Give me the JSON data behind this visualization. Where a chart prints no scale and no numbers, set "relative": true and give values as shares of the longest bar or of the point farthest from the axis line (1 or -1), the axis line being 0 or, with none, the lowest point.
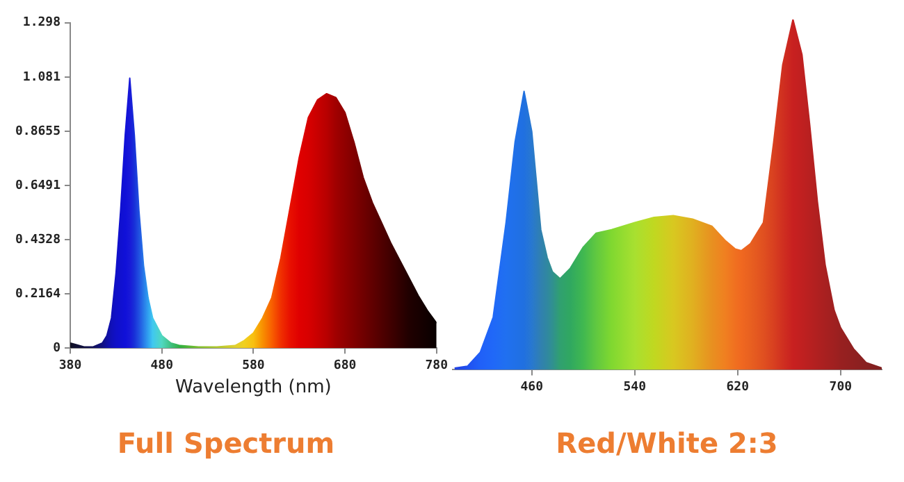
{
  "chart_data": [
    {
      "type": "area",
      "title": "Full Spectrum",
      "xlabel": "Wavelength (nm)",
      "xlim": [
        380,
        780
      ],
      "xticks": [
        380,
        480,
        580,
        680,
        780
      ],
      "ylim": [
        0,
        1.298
      ],
      "yticks": [
        0,
        0.2164,
        0.4328,
        0.6491,
        0.8655,
        1.081,
        1.298
      ],
      "x": [
        380,
        385,
        395,
        405,
        415,
        420,
        425,
        430,
        435,
        440,
        445,
        450,
        455,
        460,
        465,
        470,
        480,
        490,
        500,
        520,
        540,
        560,
        570,
        580,
        590,
        600,
        610,
        620,
        630,
        640,
        650,
        660,
        670,
        680,
        690,
        700,
        710,
        720,
        730,
        740,
        750,
        760,
        770,
        780
      ],
      "series": [
        {
          "values": [
            0.02,
            0.015,
            0.005,
            0.005,
            0.02,
            0.05,
            0.12,
            0.3,
            0.55,
            0.85,
            1.077,
            0.85,
            0.55,
            0.33,
            0.2,
            0.12,
            0.05,
            0.02,
            0.01,
            0.005,
            0.005,
            0.01,
            0.03,
            0.06,
            0.12,
            0.2,
            0.36,
            0.56,
            0.76,
            0.92,
            0.99,
            1.015,
            1.0,
            0.94,
            0.82,
            0.68,
            0.58,
            0.5,
            0.42,
            0.35,
            0.28,
            0.21,
            0.15,
            0.1
          ],
          "colors": [
            "#101020",
            "#101030",
            "#101040",
            "#10105a",
            "#101080",
            "#1010a0",
            "#1010b8",
            "#1010c8",
            "#1010d0",
            "#1010d8",
            "#1818d8",
            "#1830d8",
            "#2050e0",
            "#2878e8",
            "#30a0f0",
            "#40c8f0",
            "#50d8c0",
            "#40c080",
            "#30b040",
            "#80c030",
            "#b0c830",
            "#e0d030",
            "#f0d020",
            "#f8c010",
            "#f89000",
            "#f86000",
            "#f03000",
            "#e81000",
            "#e00000",
            "#d80000",
            "#c80000",
            "#b80000",
            "#a00000",
            "#900000",
            "#800000",
            "#700000",
            "#600000",
            "#500000",
            "#400000",
            "#300000",
            "#200000",
            "#180000",
            "#100000",
            "#080000"
          ]
        }
      ]
    },
    {
      "type": "area",
      "title": "Red/White 2:3",
      "relative": true,
      "xlim": [
        398,
        732
      ],
      "xticks": [
        460,
        540,
        620,
        700
      ],
      "x": [
        400,
        410,
        420,
        430,
        440,
        447,
        454,
        460,
        467,
        472,
        476,
        482,
        490,
        500,
        510,
        522,
        540,
        555,
        570,
        585,
        600,
        610,
        618,
        623,
        630,
        640,
        648,
        655,
        663,
        670,
        676,
        682,
        688,
        695,
        700,
        710,
        720,
        732
      ],
      "series": [
        {
          "values": [
            0.005,
            0.01,
            0.05,
            0.15,
            0.42,
            0.65,
            0.795,
            0.68,
            0.4,
            0.32,
            0.28,
            0.26,
            0.29,
            0.35,
            0.39,
            0.4,
            0.42,
            0.435,
            0.44,
            0.43,
            0.41,
            0.37,
            0.345,
            0.34,
            0.36,
            0.42,
            0.65,
            0.87,
            1.0,
            0.9,
            0.7,
            0.48,
            0.3,
            0.17,
            0.12,
            0.06,
            0.02,
            0.005
          ],
          "colors": [
            "#2040e0",
            "#2050f0",
            "#2060f8",
            "#2068f8",
            "#2070f0",
            "#2070e8",
            "#2070e0",
            "#2878d0",
            "#3080b0",
            "#3088a0",
            "#309090",
            "#30a070",
            "#30a860",
            "#40b850",
            "#60c840",
            "#80d830",
            "#a8e030",
            "#c0d820",
            "#d8c820",
            "#e0b020",
            "#e89020",
            "#f08020",
            "#f07020",
            "#f06820",
            "#e86020",
            "#e05020",
            "#d84020",
            "#d03020",
            "#c82020",
            "#c02020",
            "#b82020",
            "#b02020",
            "#a82020",
            "#a02020",
            "#982020",
            "#902020",
            "#882020",
            "#802020"
          ]
        }
      ]
    }
  ]
}
